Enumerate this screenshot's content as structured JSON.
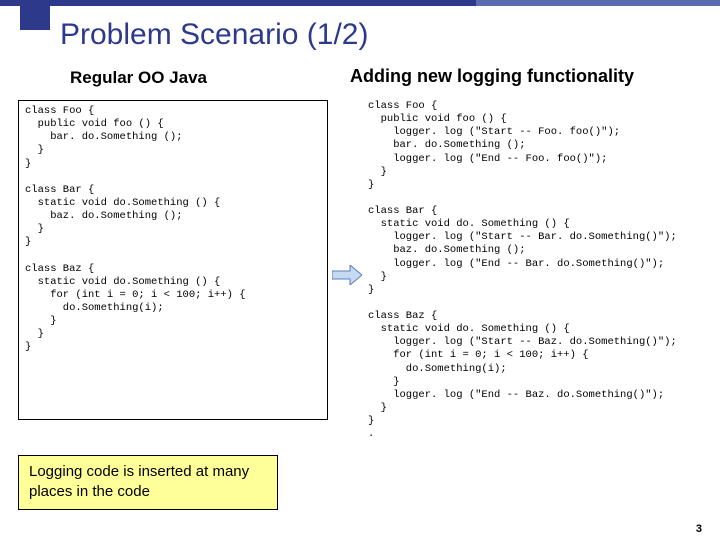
{
  "title": "Problem Scenario (1/2)",
  "subLeft": "Regular OO Java",
  "subRight": "Adding new logging functionality",
  "codeLeft": "class Foo {\n  public void foo () {\n    bar. do.Something ();\n  }\n}\n\nclass Bar {\n  static void do.Something () {\n    baz. do.Something ();\n  }\n}\n\nclass Baz {\n  static void do.Something () {\n    for (int i = 0; i < 100; i++) {\n      do.Something(i);\n    }\n  }\n}",
  "codeRight": "class Foo {\n  public void foo () {\n    logger. log (\"Start -- Foo. foo()\");\n    bar. do.Something ();\n    logger. log (\"End -- Foo. foo()\");\n  }\n}\n\nclass Bar {\n  static void do. Something () {\n    logger. log (\"Start -- Bar. do.Something()\");\n    baz. do.Something ();\n    logger. log (\"End -- Bar. do.Something()\");\n  }\n}\n\nclass Baz {\n  static void do. Something () {\n    logger. log (\"Start -- Baz. do.Something()\");\n    for (int i = 0; i < 100; i++) {\n      do.Something(i);\n    }\n    logger. log (\"End -- Baz. do.Something()\");\n  }\n}\n.",
  "callout": "Logging code is inserted at many places in the code",
  "pageNum": "3",
  "colors": {
    "accent": "#2d3a8c",
    "calloutBg": "#ffff99",
    "arrowFill": "#c5d9f1",
    "arrowStroke": "#5a7db8"
  },
  "topBar": {
    "seg1_width": 38,
    "gap_width": 8,
    "seg2_width": 430,
    "seg3_width": 244
  }
}
